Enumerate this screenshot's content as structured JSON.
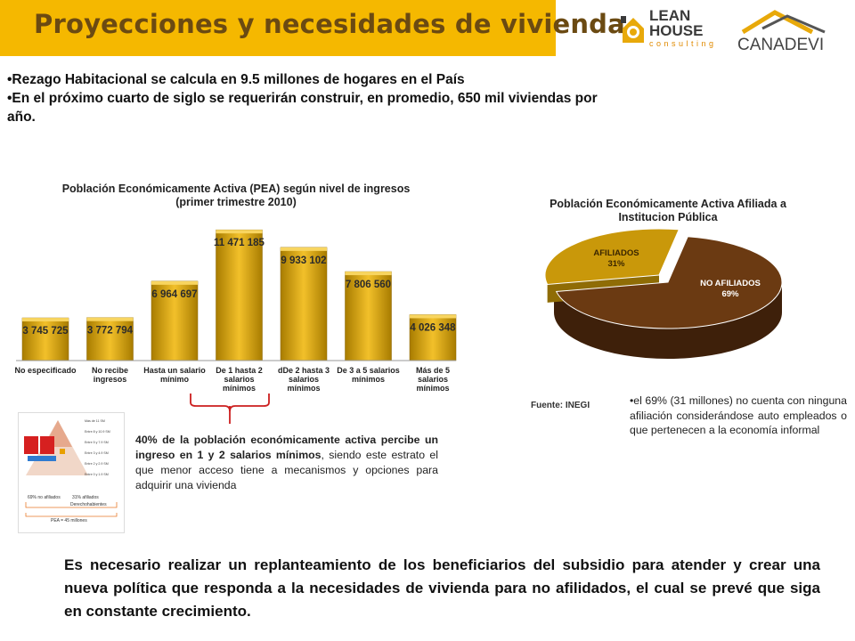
{
  "header": {
    "title": "Proyecciones y necesidades de vivienda",
    "logo_lean": {
      "line1": "LEAN",
      "line2": "HOUSE",
      "line3": "consulting"
    },
    "logo_canadevi": "CANADEVI"
  },
  "bullets": [
    "•Rezago Habitacional se calcula en 9.5 millones de hogares en el País",
    "•En el próximo cuarto de siglo se requerirán construir, en promedio, 650 mil viviendas por año."
  ],
  "chart_data": [
    {
      "type": "bar",
      "title": "Población Económicamente Activa (PEA) según nivel de ingresos (primer trimestre 2010)",
      "categories": [
        "No especificado",
        "No recibe ingresos",
        "Hasta un salario mínimo",
        "De 1 hasta 2 salarios mínimos",
        "dDe 2 hasta 3 salarios mínimos",
        "De 3 a 5 salarios mínimos",
        "Más de 5 salarios mínimos"
      ],
      "values": [
        3745725,
        3772794,
        6964697,
        11471185,
        9933102,
        7806560,
        4026348
      ],
      "value_labels": [
        "3 745 725",
        "3 772 794",
        "6 964 697",
        "11 471 185",
        "9 933 102",
        "7 806 560",
        "4 026 348"
      ],
      "ylim": [
        0,
        12500000
      ],
      "grid": false,
      "bar_color": "#d6a700"
    },
    {
      "type": "pie",
      "title": "Población Económicamente Activa Afiliada a Institucion Pública",
      "labels": [
        "AFILIADOS",
        "NO AFILIADOS"
      ],
      "values": [
        31,
        69
      ],
      "value_labels": [
        "31%",
        "69%"
      ],
      "colors": [
        "#c9980a",
        "#6b3a12"
      ]
    }
  ],
  "source": "Fuente: INEGI",
  "note": "•el 69% (31 millones) no cuenta con ninguna afiliación considerándose auto empleados o que pertenecen a la economía informal",
  "mid_text": {
    "bold": "40% de la población económicamente activa percibe un ingreso en 1 y 2 salarios mínimos",
    "rest": ", siendo este estrato el que menor acceso tiene a mecanismos y opciones para adquirir una vivienda"
  },
  "bottom_text": "Es necesario realizar un replanteamiento de los beneficiarios del subsidio para atender y crear una nueva política que responda a la necesidades de vivienda para no afilidados, el cual se prevé que siga en constante crecimiento.",
  "thumbnail": {
    "left_label": "69% no afiliados",
    "right_label": "31% afiliados",
    "sub_label": "Derechohabientes",
    "bottom_label": "PEA = 45 millones",
    "levels": [
      "Más de 11 SM",
      "Entre 8 y 10.9 SM",
      "Entre 5 y 7.9 SM",
      "Entre 3 y 4.9 SM",
      "Entre 2 y 2.9 SM",
      "Entre 0 y 1.9 SM"
    ]
  },
  "colors": {
    "banner": "#f5b800",
    "title_text": "#6b4a12",
    "bracket": "#cc1f1f"
  }
}
